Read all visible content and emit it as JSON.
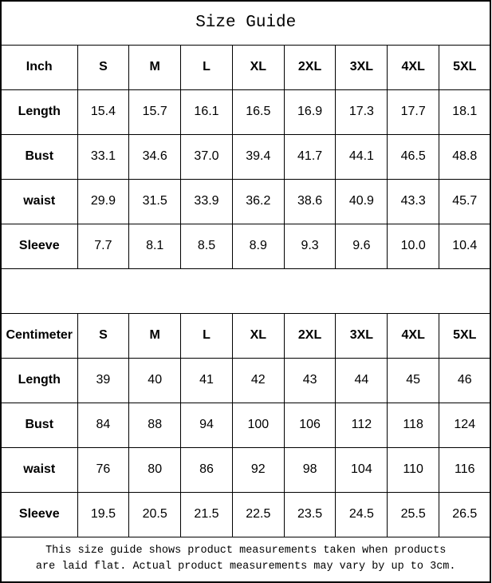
{
  "title": "Size Guide",
  "tables": [
    {
      "unit_label": "Inch",
      "sizes": [
        "S",
        "M",
        "L",
        "XL",
        "2XL",
        "3XL",
        "4XL",
        "5XL"
      ],
      "rows": [
        {
          "label": "Length",
          "values": [
            "15.4",
            "15.7",
            "16.1",
            "16.5",
            "16.9",
            "17.3",
            "17.7",
            "18.1"
          ]
        },
        {
          "label": "Bust",
          "values": [
            "33.1",
            "34.6",
            "37.0",
            "39.4",
            "41.7",
            "44.1",
            "46.5",
            "48.8"
          ]
        },
        {
          "label": "waist",
          "values": [
            "29.9",
            "31.5",
            "33.9",
            "36.2",
            "38.6",
            "40.9",
            "43.3",
            "45.7"
          ]
        },
        {
          "label": "Sleeve",
          "values": [
            "7.7",
            "8.1",
            "8.5",
            "8.9",
            "9.3",
            "9.6",
            "10.0",
            "10.4"
          ]
        }
      ]
    },
    {
      "unit_label": "Centimeter",
      "sizes": [
        "S",
        "M",
        "L",
        "XL",
        "2XL",
        "3XL",
        "4XL",
        "5XL"
      ],
      "rows": [
        {
          "label": "Length",
          "values": [
            "39",
            "40",
            "41",
            "42",
            "43",
            "44",
            "45",
            "46"
          ]
        },
        {
          "label": "Bust",
          "values": [
            "84",
            "88",
            "94",
            "100",
            "106",
            "112",
            "118",
            "124"
          ]
        },
        {
          "label": "waist",
          "values": [
            "76",
            "80",
            "86",
            "92",
            "98",
            "104",
            "110",
            "116"
          ]
        },
        {
          "label": "Sleeve",
          "values": [
            "19.5",
            "20.5",
            "21.5",
            "22.5",
            "23.5",
            "24.5",
            "25.5",
            "26.5"
          ]
        }
      ]
    }
  ],
  "footer": {
    "line1": "This size guide shows product measurements taken when products",
    "line2": "are laid flat. Actual product measurements may vary by up to 3cm."
  },
  "colors": {
    "border": "#000000",
    "text": "#000000",
    "background": "#ffffff"
  }
}
